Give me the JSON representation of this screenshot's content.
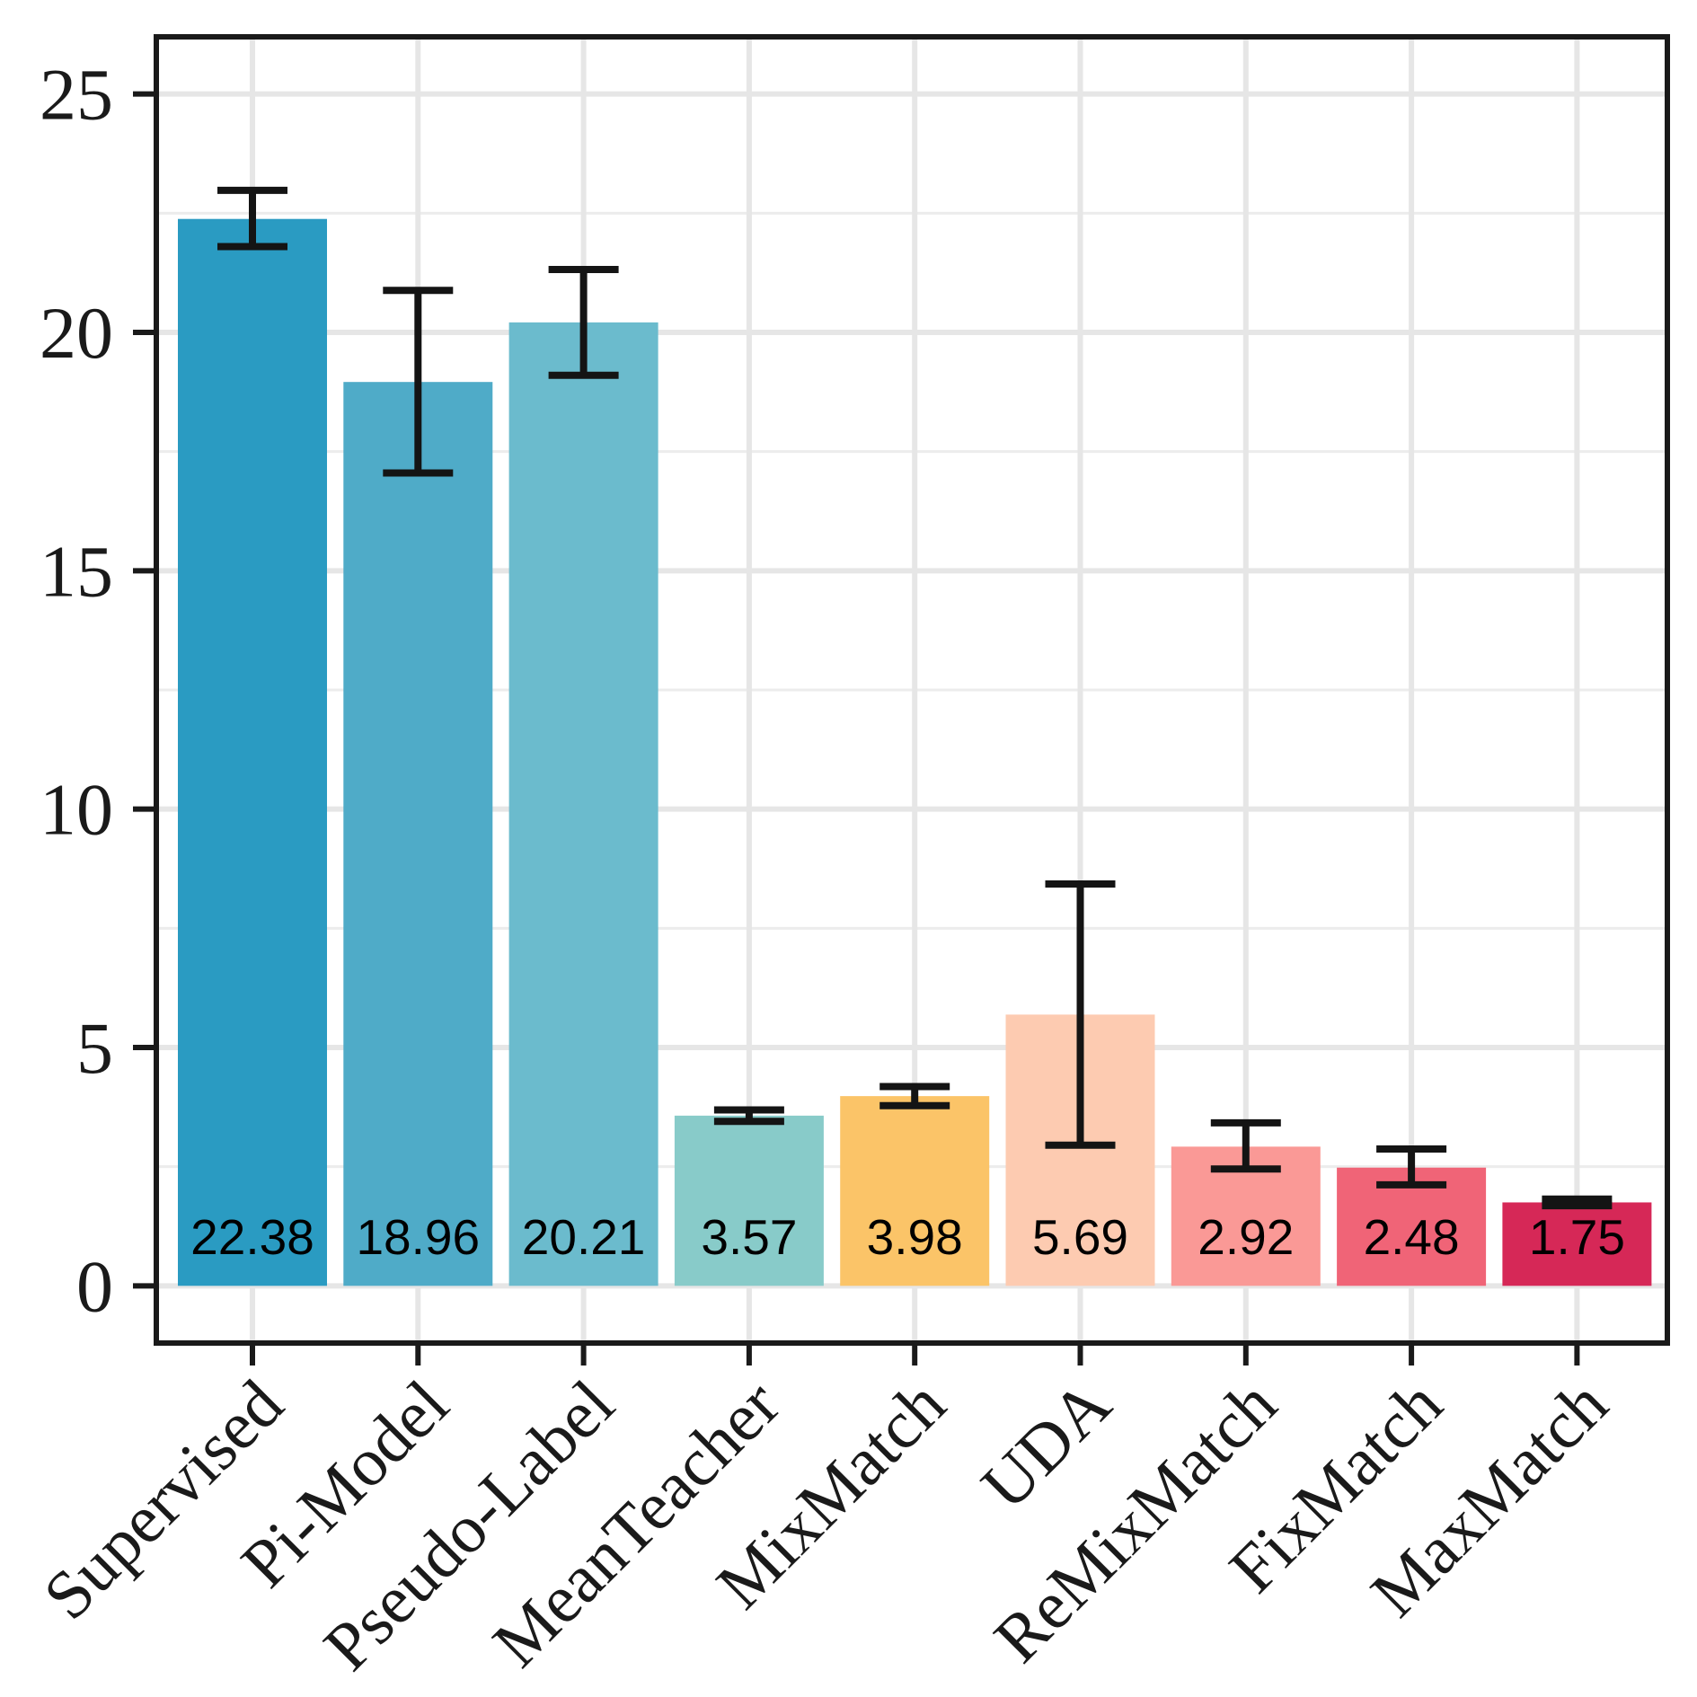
{
  "chart_data": {
    "type": "bar",
    "title": "",
    "xlabel": "",
    "ylabel": "",
    "ylim": [
      -1.2,
      26.2
    ],
    "yticks": [
      "0",
      "5",
      "10",
      "15",
      "20",
      "25"
    ],
    "grid": true,
    "categories": [
      "Supervised",
      "Pi-Model",
      "Pseudo-Label",
      "MeanTeacher",
      "MixMatch",
      "UDA",
      "ReMixMatch",
      "FixMatch",
      "MaxMatch"
    ],
    "values": [
      22.38,
      18.96,
      20.21,
      3.57,
      3.98,
      5.69,
      2.92,
      2.48,
      1.75
    ],
    "value_labels": [
      "22.38",
      "18.96",
      "20.21",
      "3.57",
      "3.98",
      "5.69",
      "2.92",
      "2.48",
      "1.75"
    ],
    "error_low": [
      21.8,
      17.05,
      19.1,
      3.45,
      3.78,
      2.95,
      2.45,
      2.12,
      1.68
    ],
    "error_high": [
      22.98,
      20.88,
      21.32,
      3.69,
      4.18,
      8.43,
      3.42,
      2.87,
      1.82
    ],
    "colors": [
      "#2a9bc2",
      "#4fabc8",
      "#6bbbcd",
      "#88cbc9",
      "#fbc468",
      "#fdcbb1",
      "#fa9996",
      "#f06477",
      "#d62857"
    ]
  }
}
